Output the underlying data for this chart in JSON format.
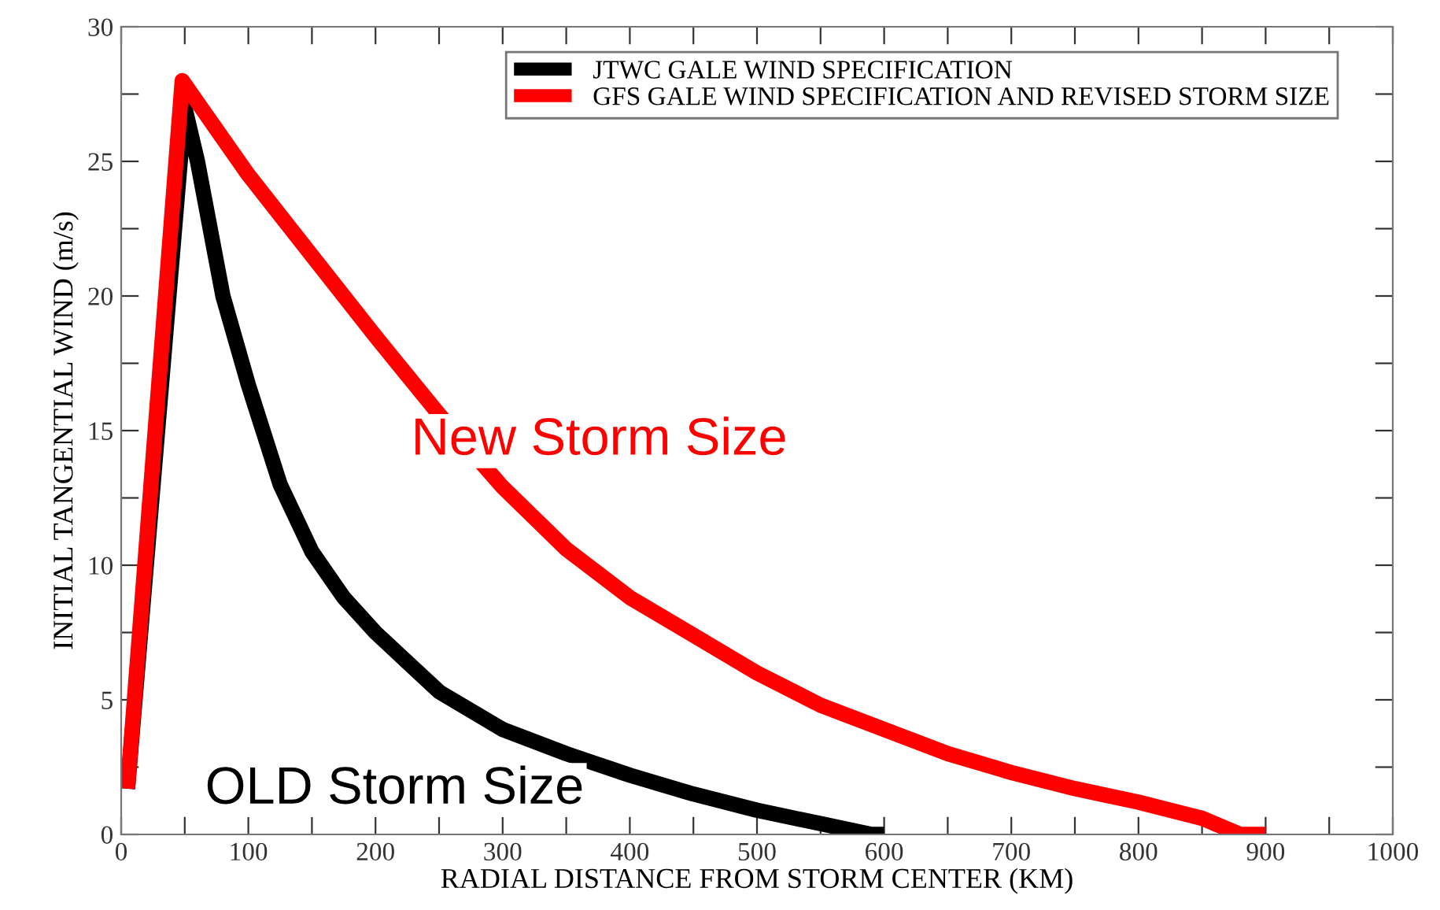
{
  "chart_data": {
    "type": "line",
    "xlabel": "RADIAL DISTANCE FROM STORM CENTER (KM)",
    "ylabel": "INITIAL TANGENTIAL WIND (m/s)",
    "xlim": [
      0,
      1000
    ],
    "ylim": [
      0,
      30
    ],
    "xticks": [
      0,
      {
        "value": 50,
        "label": null
      },
      100,
      {
        "value": 150,
        "label": null
      },
      200,
      {
        "value": 250,
        "label": null
      },
      300,
      {
        "value": 350,
        "label": null
      },
      400,
      {
        "value": 450,
        "label": null
      },
      500,
      {
        "value": 550,
        "label": null
      },
      600,
      {
        "value": 650,
        "label": null
      },
      700,
      {
        "value": 750,
        "label": null
      },
      800,
      {
        "value": 850,
        "label": null
      },
      900,
      {
        "value": 950,
        "label": null
      },
      1000
    ],
    "yticks": [
      0,
      {
        "value": 2.5,
        "label": null
      },
      5,
      {
        "value": 7.5,
        "label": null
      },
      10,
      {
        "value": 12.5,
        "label": null
      },
      15,
      {
        "value": 17.5,
        "label": null
      },
      20,
      {
        "value": 22.5,
        "label": null
      },
      25,
      {
        "value": 27.5,
        "label": null
      },
      30
    ],
    "grid": false,
    "legend": "top right",
    "marker": "none",
    "line_style": "solid",
    "series": [
      {
        "name": "JTWC GALE WIND SPECIFICATION",
        "color": "#000000",
        "x": [
          5,
          50,
          60,
          80,
          100,
          125,
          150,
          175,
          200,
          250,
          300,
          350,
          400,
          450,
          500,
          550,
          590,
          600
        ],
        "values": [
          1.7,
          27,
          25,
          20,
          16.7,
          13,
          10.5,
          8.8,
          7.5,
          5.3,
          3.9,
          3.0,
          2.2,
          1.5,
          0.9,
          0.4,
          0,
          0
        ]
      },
      {
        "name": "GFS GALE WIND SPECIFICATION AND REVISED STORM SIZE",
        "color": "#ff0000",
        "x": [
          5,
          48,
          100,
          150,
          200,
          250,
          300,
          350,
          400,
          450,
          500,
          550,
          600,
          650,
          700,
          750,
          800,
          850,
          880,
          900
        ],
        "values": [
          1.7,
          28,
          24.5,
          21.5,
          18.5,
          15.6,
          12.9,
          10.6,
          8.8,
          7.4,
          6.0,
          4.8,
          3.9,
          3.0,
          2.3,
          1.7,
          1.2,
          0.6,
          0,
          0
        ]
      }
    ],
    "annotations": [
      "OLD Storm Size",
      "New Storm Size"
    ]
  }
}
